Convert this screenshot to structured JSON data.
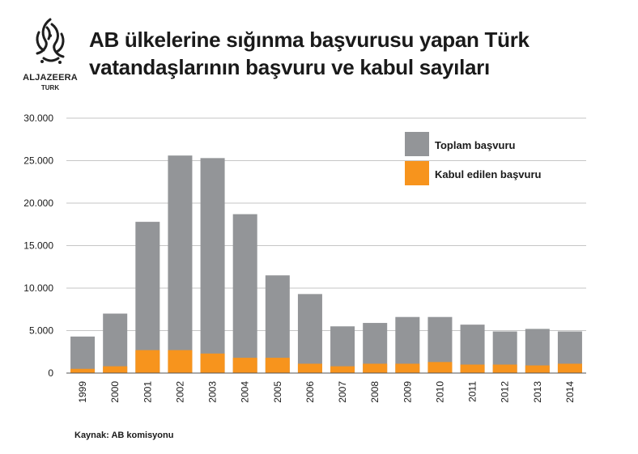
{
  "header": {
    "logo_name": "ALJAZEERA",
    "logo_sub": "TURK",
    "title_line1": "AB ülkelerine sığınma başvurusu yapan Türk",
    "title_line2": "vatandaşlarının başvuru ve kabul sayıları"
  },
  "footer": {
    "source": "Kaynak: AB komisyonu"
  },
  "colors": {
    "total": "#939598",
    "accepted": "#f7941d",
    "grid": "#b3b3b3",
    "text": "#1a1a1a"
  },
  "chart_data": {
    "type": "bar",
    "categories": [
      "1999",
      "2000",
      "2001",
      "2002",
      "2003",
      "2004",
      "2005",
      "2006",
      "2007",
      "2008",
      "2009",
      "2010",
      "2011",
      "2012",
      "2013",
      "2014"
    ],
    "series": [
      {
        "name": "Toplam başvuru",
        "values": [
          4300,
          7000,
          17800,
          25600,
          25300,
          18700,
          11500,
          9300,
          5500,
          5900,
          6600,
          6600,
          5700,
          4900,
          5200,
          4900
        ]
      },
      {
        "name": "Kabul edilen başvuru",
        "values": [
          500,
          800,
          2700,
          2700,
          2300,
          1800,
          1800,
          1100,
          800,
          1100,
          1100,
          1300,
          1000,
          1000,
          900,
          1100
        ]
      }
    ],
    "ytick_labels": [
      "0",
      "5.000",
      "10.000",
      "15.000",
      "20.000",
      "25.000",
      "30.000"
    ],
    "ytick_values": [
      0,
      5000,
      10000,
      15000,
      20000,
      25000,
      30000
    ],
    "ylim": [
      0,
      30000
    ],
    "grid": true,
    "legend_position": "top-right"
  }
}
